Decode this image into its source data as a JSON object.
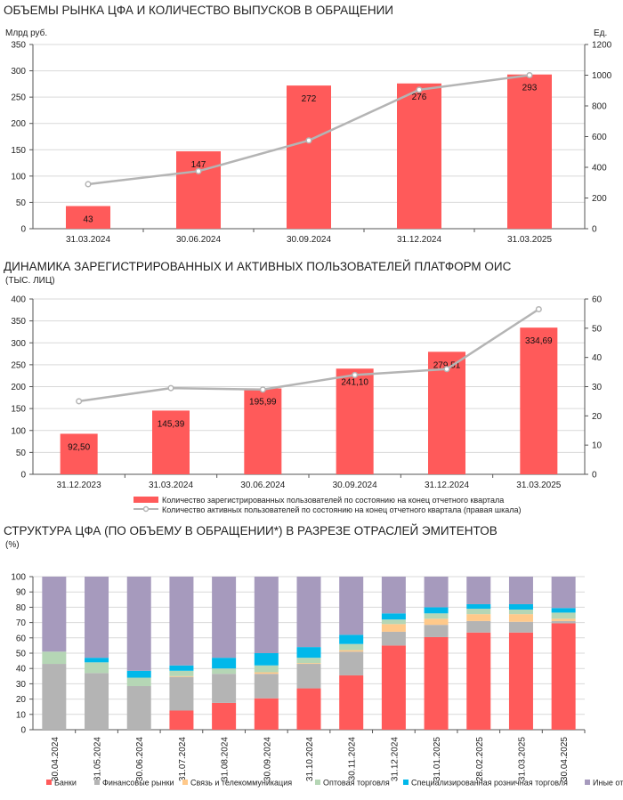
{
  "colors": {
    "bar": "#ff5a5a",
    "line": "#b4b4b4",
    "grid": "#d9d9d9"
  },
  "chart_data": [
    {
      "type": "bar+line",
      "title": "ОБЪЕМЫ РЫНКА ЦФА И КОЛИЧЕСТВО ВЫПУСКОВ В ОБРАЩЕНИИ",
      "ylabel": "Млрд руб.",
      "y2label": "Ед.",
      "categories": [
        "31.03.2024",
        "30.06.2024",
        "30.09.2024",
        "31.12.2024",
        "31.03.2025"
      ],
      "ylim": [
        0,
        350
      ],
      "yticks": [
        0,
        50,
        100,
        150,
        200,
        250,
        300,
        350
      ],
      "y2lim": [
        0,
        1200
      ],
      "y2ticks": [
        0,
        200,
        400,
        600,
        800,
        1000,
        1200
      ],
      "bars": {
        "values": [
          43,
          147,
          272,
          276,
          293
        ],
        "labels": [
          "43",
          "147",
          "272",
          "276",
          "293"
        ]
      },
      "line": {
        "values": [
          290,
          375,
          575,
          905,
          1000
        ],
        "axis": "right"
      },
      "grid": true
    },
    {
      "type": "bar+line",
      "title": "ДИНАМИКА ЗАРЕГИСТРИРОВАННЫХ И АКТИВНЫХ ПОЛЬЗОВАТЕЛЕЙ ПЛАТФОРМ ОИС",
      "subtitle": "(ТЫС. ЛИЦ)",
      "categories": [
        "31.12.2023",
        "31.03.2024",
        "30.06.2024",
        "30.09.2024",
        "31.12.2024",
        "31.03.2025"
      ],
      "ylim": [
        0,
        400
      ],
      "yticks": [
        0,
        50,
        100,
        150,
        200,
        250,
        300,
        350,
        400
      ],
      "y2lim": [
        0,
        60
      ],
      "y2ticks": [
        0,
        10,
        20,
        30,
        40,
        50,
        60
      ],
      "bars": {
        "name": "Количество зарегистрированных пользователей по состоянию на конец отчетного квартала",
        "values": [
          92.5,
          145.39,
          195.99,
          241.1,
          279.51,
          334.69
        ],
        "labels": [
          "92,50",
          "145,39",
          "195,99",
          "241,10",
          "279,51",
          "334,69"
        ]
      },
      "line": {
        "name": "Количество активных пользователей по состоянию на конец отчетного квартала (правая шкала)",
        "values": [
          25,
          29.5,
          29,
          34,
          36,
          56.5
        ],
        "axis": "right"
      },
      "legend": "bottom",
      "grid": true
    },
    {
      "type": "stacked-bar",
      "title": "СТРУКТУРА ЦФА (ПО ОБЪЕМУ В ОБРАЩЕНИИ*) В РАЗРЕЗЕ ОТРАСЛЕЙ ЭМИТЕНТОВ",
      "subtitle": "(%)",
      "categories": [
        "30.04.2024",
        "31.05.2024",
        "30.06.2024",
        "31.07.2024",
        "31.08.2024",
        "30.09.2024",
        "31.10.2024",
        "30.11.2024",
        "31.12.2024",
        "31.01.2025",
        "28.02.2025",
        "31.03.2025",
        "30.04.2025"
      ],
      "ylim": [
        0,
        100
      ],
      "yticks": [
        0,
        10,
        20,
        30,
        40,
        50,
        60,
        70,
        80,
        90,
        100
      ],
      "legend": "bottom",
      "grid": true,
      "series": [
        {
          "name": "Банки",
          "color": "#ff5a5a",
          "values": [
            0,
            0,
            0,
            12.5,
            17.5,
            20.5,
            27,
            35.5,
            55,
            60.5,
            63.5,
            63.5,
            69.5
          ]
        },
        {
          "name": "Финансовые рынки",
          "color": "#b4b4b4",
          "values": [
            43,
            37,
            28.5,
            22,
            19,
            16,
            16,
            15.5,
            9,
            8,
            7.5,
            7,
            1.5
          ]
        },
        {
          "name": "Связь и телекоммуникация",
          "color": "#ffc98a",
          "values": [
            0,
            0,
            0,
            0.5,
            0,
            1,
            0.5,
            1,
            5,
            4,
            4.5,
            5,
            1.5
          ]
        },
        {
          "name": "Оптовая торговля",
          "color": "#b5d6b5",
          "values": [
            8,
            7,
            5.5,
            3.5,
            3.5,
            4.5,
            3.5,
            4,
            3,
            3.5,
            3.5,
            3,
            4
          ]
        },
        {
          "name": "Специализированная розничная торговля",
          "color": "#00b8ea",
          "values": [
            0,
            3,
            4.5,
            3.5,
            7,
            8,
            7,
            6,
            4,
            4,
            3,
            3.5,
            3
          ]
        },
        {
          "name": "Иные отрасли",
          "color": "#a69abd",
          "values": [
            49,
            53,
            61.5,
            58,
            53,
            50,
            46,
            38,
            24,
            20,
            18,
            18,
            20.5
          ]
        }
      ]
    }
  ]
}
